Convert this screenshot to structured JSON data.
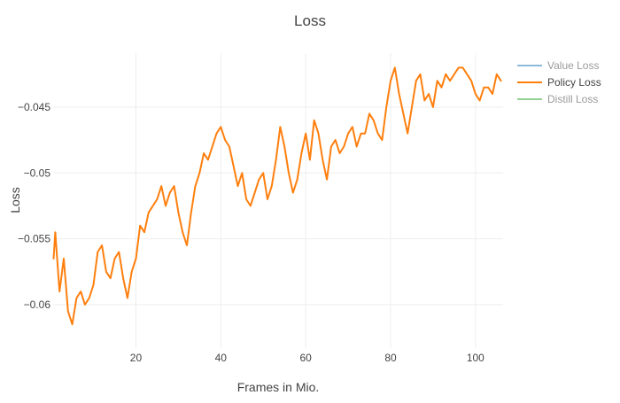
{
  "chart_data": {
    "type": "line",
    "title": "Loss",
    "xlabel": "Frames in Mio.",
    "ylabel": "Loss",
    "xlim": [
      0.5,
      106.5
    ],
    "ylim": [
      -0.0633,
      -0.0409
    ],
    "xticks": [
      20,
      40,
      60,
      80,
      100
    ],
    "xtick_labels": [
      "20",
      "40",
      "60",
      "80",
      "100"
    ],
    "yticks": [
      -0.06,
      -0.055,
      -0.05,
      -0.045
    ],
    "ytick_labels": [
      "−0.06",
      "−0.055",
      "−0.05",
      "−0.045"
    ],
    "grid": true,
    "legend_position": "top-right",
    "series": [
      {
        "name": "Value Loss",
        "color": "#1f77b4",
        "visible": false,
        "x": [],
        "y": []
      },
      {
        "name": "Policy Loss",
        "color": "#ff7f0e",
        "visible": true,
        "x": [
          0.6,
          1,
          2,
          3,
          4,
          5,
          6,
          7,
          8,
          9,
          10,
          11,
          12,
          13,
          14,
          15,
          16,
          17,
          18,
          19,
          20,
          21,
          22,
          23,
          24,
          25,
          26,
          27,
          28,
          29,
          30,
          31,
          32,
          33,
          34,
          35,
          36,
          37,
          38,
          39,
          40,
          41,
          42,
          43,
          44,
          45,
          46,
          47,
          48,
          49,
          50,
          51,
          52,
          53,
          54,
          55,
          56,
          57,
          58,
          59,
          60,
          61,
          62,
          63,
          64,
          65,
          66,
          67,
          68,
          69,
          70,
          71,
          72,
          73,
          74,
          75,
          76,
          77,
          78,
          79,
          80,
          81,
          82,
          83,
          84,
          85,
          86,
          87,
          88,
          89,
          90,
          91,
          92,
          93,
          94,
          95,
          96,
          97,
          98,
          99,
          100,
          101,
          102,
          103,
          104,
          105,
          106
        ],
        "y": [
          -0.0565,
          -0.0545,
          -0.059,
          -0.0565,
          -0.0605,
          -0.0615,
          -0.0595,
          -0.059,
          -0.06,
          -0.0595,
          -0.0585,
          -0.056,
          -0.0555,
          -0.0575,
          -0.058,
          -0.0565,
          -0.056,
          -0.058,
          -0.0595,
          -0.0575,
          -0.0565,
          -0.054,
          -0.0545,
          -0.053,
          -0.0525,
          -0.052,
          -0.051,
          -0.0525,
          -0.0515,
          -0.051,
          -0.053,
          -0.0545,
          -0.0555,
          -0.053,
          -0.051,
          -0.05,
          -0.0485,
          -0.049,
          -0.048,
          -0.047,
          -0.0465,
          -0.0475,
          -0.048,
          -0.0495,
          -0.051,
          -0.05,
          -0.052,
          -0.0525,
          -0.0515,
          -0.0505,
          -0.05,
          -0.052,
          -0.051,
          -0.049,
          -0.0465,
          -0.048,
          -0.05,
          -0.0515,
          -0.0505,
          -0.0485,
          -0.047,
          -0.049,
          -0.046,
          -0.047,
          -0.049,
          -0.0505,
          -0.048,
          -0.0475,
          -0.0485,
          -0.048,
          -0.047,
          -0.0465,
          -0.048,
          -0.047,
          -0.047,
          -0.0455,
          -0.046,
          -0.047,
          -0.0475,
          -0.045,
          -0.043,
          -0.042,
          -0.044,
          -0.0455,
          -0.047,
          -0.045,
          -0.043,
          -0.0425,
          -0.0445,
          -0.044,
          -0.045,
          -0.043,
          -0.0435,
          -0.0425,
          -0.043,
          -0.0425,
          -0.042,
          -0.042,
          -0.0425,
          -0.043,
          -0.044,
          -0.0445,
          -0.0435,
          -0.0435,
          -0.044,
          -0.0425,
          -0.043
        ]
      },
      {
        "name": "Distill Loss",
        "color": "#2ca02c",
        "visible": false,
        "x": [],
        "y": []
      }
    ]
  }
}
